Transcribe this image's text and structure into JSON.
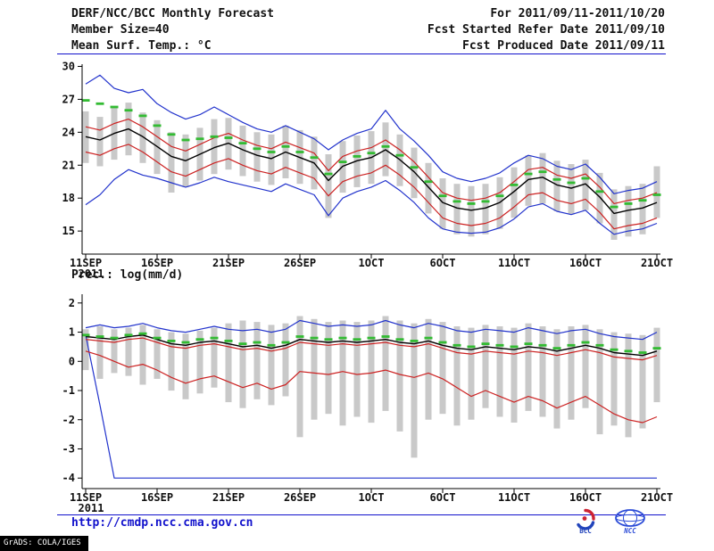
{
  "header": {
    "title": "DERF/NCC/BCC Monthly Forecast",
    "for_range": "For 2011/09/11-2011/10/20",
    "member_size": "Member Size=40",
    "refer_date": "Fcst Started Refer Date 2011/09/10",
    "produced_date": "Fcst Produced Date 2011/09/11"
  },
  "footer": {
    "url": "http://cmdp.ncc.cma.gov.cn",
    "grads_credit": "GrADS: COLA/IGES",
    "logos": [
      {
        "name": "bcc-logo",
        "label": "BCC"
      },
      {
        "name": "ncc-logo",
        "label": "NCC"
      }
    ]
  },
  "colors": {
    "blue": "#2233cc",
    "red": "#cc2222",
    "black": "#000000",
    "green": "#33bb33",
    "bar": "#c9c9c9",
    "accent": "#1111cc",
    "text": "#111111"
  },
  "chart_data": [
    {
      "type": "line",
      "name": "temperature",
      "title": "Mean Surf. Temp.: °C",
      "x_year_label": "2011",
      "x_tick_labels": [
        "11SEP",
        "16SEP",
        "21SEP",
        "26SEP",
        "1OCT",
        "6OCT",
        "11OCT",
        "16OCT",
        "21OCT"
      ],
      "x_tick_indices": [
        0,
        5,
        10,
        15,
        20,
        25,
        30,
        35,
        40
      ],
      "yticks": [
        15,
        18,
        21,
        24,
        27,
        30
      ],
      "ylim": [
        12.9,
        30.2
      ],
      "grid": false,
      "legend": "none",
      "series": [
        {
          "name": "ensemble-max",
          "color": "blue",
          "style": "solid",
          "values": [
            28.4,
            29.2,
            28.0,
            27.6,
            27.9,
            26.6,
            25.8,
            25.2,
            25.6,
            26.3,
            25.6,
            24.9,
            24.3,
            24.0,
            24.6,
            24.0,
            23.4,
            22.4,
            23.3,
            23.9,
            24.3,
            26.0,
            24.3,
            23.2,
            21.9,
            20.4,
            19.8,
            19.5,
            19.8,
            20.3,
            21.2,
            21.9,
            21.6,
            20.9,
            20.6,
            21.1,
            19.9,
            18.4,
            18.7,
            18.9,
            19.5
          ]
        },
        {
          "name": "ensemble-min",
          "color": "blue",
          "style": "solid",
          "values": [
            17.4,
            18.3,
            19.7,
            20.6,
            20.1,
            19.8,
            19.4,
            19.0,
            19.4,
            19.9,
            19.5,
            19.2,
            18.9,
            18.6,
            19.3,
            18.8,
            18.3,
            16.4,
            18.0,
            18.6,
            19.0,
            19.6,
            18.7,
            17.6,
            16.2,
            15.2,
            14.9,
            14.8,
            14.9,
            15.3,
            16.1,
            17.2,
            17.5,
            16.8,
            16.5,
            16.9,
            15.7,
            14.7,
            15.0,
            15.2,
            15.7
          ]
        },
        {
          "name": "upper-quartile",
          "color": "red",
          "style": "solid",
          "values": [
            24.5,
            24.2,
            24.8,
            25.2,
            24.5,
            23.6,
            22.7,
            22.3,
            22.9,
            23.5,
            23.9,
            23.3,
            22.8,
            22.5,
            23.1,
            22.6,
            22.1,
            20.5,
            21.8,
            22.3,
            22.6,
            23.3,
            22.4,
            21.3,
            19.9,
            18.5,
            18.0,
            17.8,
            18.0,
            18.5,
            19.5,
            20.6,
            20.8,
            20.1,
            19.8,
            20.2,
            19.0,
            17.5,
            17.8,
            18.0,
            18.5
          ]
        },
        {
          "name": "lower-quartile",
          "color": "red",
          "style": "solid",
          "values": [
            22.2,
            21.9,
            22.5,
            22.9,
            22.2,
            21.3,
            20.4,
            20.0,
            20.6,
            21.2,
            21.6,
            21.0,
            20.5,
            20.2,
            20.8,
            20.3,
            19.8,
            18.2,
            19.5,
            20.0,
            20.3,
            21.0,
            20.1,
            19.0,
            17.6,
            16.2,
            15.7,
            15.5,
            15.7,
            16.2,
            17.2,
            18.3,
            18.5,
            17.8,
            17.5,
            17.9,
            16.7,
            15.2,
            15.5,
            15.7,
            16.2
          ]
        },
        {
          "name": "ensemble-mean",
          "color": "black",
          "style": "solid",
          "values": [
            23.6,
            23.3,
            23.9,
            24.3,
            23.6,
            22.7,
            21.8,
            21.4,
            22.0,
            22.6,
            23.0,
            22.4,
            21.9,
            21.6,
            22.2,
            21.7,
            21.2,
            19.6,
            20.9,
            21.4,
            21.7,
            22.4,
            21.5,
            20.4,
            19.0,
            17.6,
            17.1,
            16.9,
            17.1,
            17.6,
            18.6,
            19.7,
            19.9,
            19.2,
            18.9,
            19.3,
            18.1,
            16.6,
            16.9,
            17.1,
            17.6
          ]
        },
        {
          "name": "median-dashes",
          "color": "green",
          "style": "dash",
          "values": [
            26.9,
            26.6,
            26.3,
            26.0,
            25.5,
            24.6,
            23.8,
            23.3,
            23.4,
            23.6,
            23.5,
            23.0,
            22.5,
            22.2,
            22.7,
            22.2,
            21.7,
            20.2,
            21.3,
            21.8,
            22.1,
            22.7,
            21.9,
            20.8,
            19.5,
            18.2,
            17.7,
            17.5,
            17.7,
            18.2,
            19.2,
            20.2,
            20.4,
            19.7,
            19.4,
            19.8,
            18.6,
            17.2,
            17.5,
            17.8,
            18.3
          ]
        }
      ],
      "bars": {
        "name": "ensemble-spread",
        "high": [
          25.9,
          25.4,
          26.3,
          26.7,
          25.8,
          25.1,
          24.0,
          23.8,
          24.4,
          25.2,
          25.3,
          24.6,
          24.0,
          23.8,
          24.6,
          24.2,
          23.6,
          22.0,
          23.2,
          23.7,
          24.1,
          24.9,
          23.8,
          22.6,
          21.2,
          19.8,
          19.3,
          19.1,
          19.3,
          19.9,
          20.8,
          21.9,
          22.1,
          21.4,
          21.1,
          21.5,
          20.3,
          18.8,
          19.1,
          19.3,
          20.9
        ],
        "low": [
          21.2,
          20.9,
          21.5,
          21.9,
          21.2,
          20.2,
          18.5,
          19.0,
          19.6,
          20.2,
          20.6,
          20.0,
          19.5,
          19.2,
          19.8,
          19.3,
          18.8,
          16.2,
          18.5,
          19.0,
          19.3,
          20.0,
          19.1,
          18.0,
          16.6,
          15.2,
          14.7,
          14.5,
          14.7,
          15.2,
          16.2,
          17.3,
          17.5,
          16.8,
          16.5,
          16.9,
          15.7,
          14.2,
          14.5,
          14.7,
          16.2
        ]
      }
    },
    {
      "type": "line",
      "name": "precipitation",
      "title": "Prec.: log(mm/d)",
      "x_year_label": "2011",
      "x_tick_labels": [
        "11SEP",
        "16SEP",
        "21SEP",
        "26SEP",
        "1OCT",
        "6OCT",
        "11OCT",
        "16OCT",
        "21OCT"
      ],
      "x_tick_indices": [
        0,
        5,
        10,
        15,
        20,
        25,
        30,
        35,
        40
      ],
      "yticks": [
        -4,
        -3,
        -2,
        -1,
        0,
        1,
        2
      ],
      "ylim": [
        -4.36,
        2.3
      ],
      "grid": false,
      "legend": "none",
      "series": [
        {
          "name": "ensemble-max",
          "color": "blue",
          "style": "solid",
          "values": [
            1.15,
            1.25,
            1.15,
            1.2,
            1.3,
            1.15,
            1.05,
            1.0,
            1.1,
            1.2,
            1.1,
            1.05,
            1.1,
            1.0,
            1.1,
            1.4,
            1.3,
            1.2,
            1.25,
            1.2,
            1.25,
            1.4,
            1.25,
            1.15,
            1.3,
            1.2,
            1.05,
            1.0,
            1.1,
            1.05,
            1.0,
            1.15,
            1.05,
            0.95,
            1.05,
            1.1,
            0.95,
            0.85,
            0.8,
            0.75,
            1.0
          ]
        },
        {
          "name": "ensemble-min",
          "color": "blue",
          "style": "solid",
          "values": [
            0.9,
            -1.5,
            -4.0,
            -4.0,
            -4.0,
            -4.0,
            -4.0,
            -4.0,
            -4.0,
            -4.0,
            -4.0,
            -4.0,
            -4.0,
            -4.0,
            -4.0,
            -4.0,
            -4.0,
            -4.0,
            -4.0,
            -4.0,
            -4.0,
            -4.0,
            -4.0,
            -4.0,
            -4.0,
            -4.0,
            -4.0,
            -4.0,
            -4.0,
            -4.0,
            -4.0,
            -4.0,
            -4.0,
            -4.0,
            -4.0,
            -4.0,
            -4.0,
            -4.0,
            -4.0,
            -4.0,
            -4.0
          ]
        },
        {
          "name": "upper-quartile",
          "color": "red",
          "style": "solid",
          "values": [
            0.75,
            0.7,
            0.65,
            0.75,
            0.8,
            0.65,
            0.5,
            0.45,
            0.55,
            0.6,
            0.5,
            0.4,
            0.45,
            0.35,
            0.45,
            0.65,
            0.6,
            0.55,
            0.6,
            0.55,
            0.6,
            0.65,
            0.55,
            0.5,
            0.6,
            0.45,
            0.3,
            0.25,
            0.35,
            0.3,
            0.25,
            0.35,
            0.3,
            0.2,
            0.3,
            0.4,
            0.3,
            0.15,
            0.1,
            0.05,
            0.2
          ]
        },
        {
          "name": "lower-quartile",
          "color": "red",
          "style": "solid",
          "values": [
            0.35,
            0.2,
            0.0,
            -0.2,
            -0.1,
            -0.3,
            -0.55,
            -0.75,
            -0.6,
            -0.5,
            -0.7,
            -0.9,
            -0.75,
            -0.95,
            -0.8,
            -0.35,
            -0.4,
            -0.45,
            -0.35,
            -0.45,
            -0.4,
            -0.3,
            -0.45,
            -0.55,
            -0.4,
            -0.6,
            -0.9,
            -1.2,
            -1.0,
            -1.2,
            -1.4,
            -1.2,
            -1.35,
            -1.6,
            -1.4,
            -1.2,
            -1.5,
            -1.8,
            -2.0,
            -2.1,
            -1.9
          ]
        },
        {
          "name": "ensemble-mean",
          "color": "black",
          "style": "solid",
          "values": [
            0.85,
            0.8,
            0.75,
            0.85,
            0.9,
            0.75,
            0.6,
            0.55,
            0.65,
            0.7,
            0.6,
            0.5,
            0.55,
            0.45,
            0.55,
            0.75,
            0.7,
            0.65,
            0.7,
            0.65,
            0.7,
            0.75,
            0.65,
            0.6,
            0.7,
            0.55,
            0.45,
            0.4,
            0.5,
            0.45,
            0.4,
            0.5,
            0.45,
            0.35,
            0.45,
            0.55,
            0.45,
            0.3,
            0.25,
            0.2,
            0.35
          ]
        },
        {
          "name": "median-dashes",
          "color": "green",
          "style": "dash",
          "values": [
            0.9,
            0.85,
            0.8,
            0.9,
            0.95,
            0.8,
            0.7,
            0.65,
            0.75,
            0.8,
            0.7,
            0.6,
            0.65,
            0.55,
            0.65,
            0.85,
            0.8,
            0.75,
            0.8,
            0.75,
            0.8,
            0.85,
            0.75,
            0.7,
            0.8,
            0.65,
            0.55,
            0.5,
            0.6,
            0.55,
            0.5,
            0.6,
            0.55,
            0.45,
            0.55,
            0.65,
            0.55,
            0.4,
            0.35,
            0.3,
            0.45
          ]
        }
      ],
      "bars": {
        "name": "ensemble-spread",
        "high": [
          1.1,
          1.2,
          1.1,
          1.15,
          1.25,
          1.1,
          1.0,
          0.95,
          1.05,
          1.15,
          1.3,
          1.4,
          1.35,
          1.25,
          1.3,
          1.55,
          1.45,
          1.35,
          1.4,
          1.35,
          1.4,
          1.55,
          1.4,
          1.3,
          1.45,
          1.35,
          1.2,
          1.15,
          1.25,
          1.2,
          1.15,
          1.3,
          1.2,
          1.1,
          1.2,
          1.25,
          1.1,
          1.0,
          0.95,
          0.9,
          1.15
        ],
        "low": [
          -0.3,
          -0.6,
          -0.4,
          -0.5,
          -0.8,
          -0.6,
          -1.0,
          -1.3,
          -1.1,
          -0.9,
          -1.4,
          -1.6,
          -1.3,
          -1.5,
          -1.2,
          -2.6,
          -2.0,
          -1.8,
          -2.2,
          -1.9,
          -2.1,
          -1.7,
          -2.4,
          -3.3,
          -2.0,
          -1.8,
          -2.2,
          -2.0,
          -1.6,
          -1.9,
          -2.1,
          -1.7,
          -1.9,
          -2.3,
          -2.0,
          -1.6,
          -2.5,
          -2.2,
          -2.6,
          -2.3,
          -1.4
        ]
      }
    }
  ]
}
